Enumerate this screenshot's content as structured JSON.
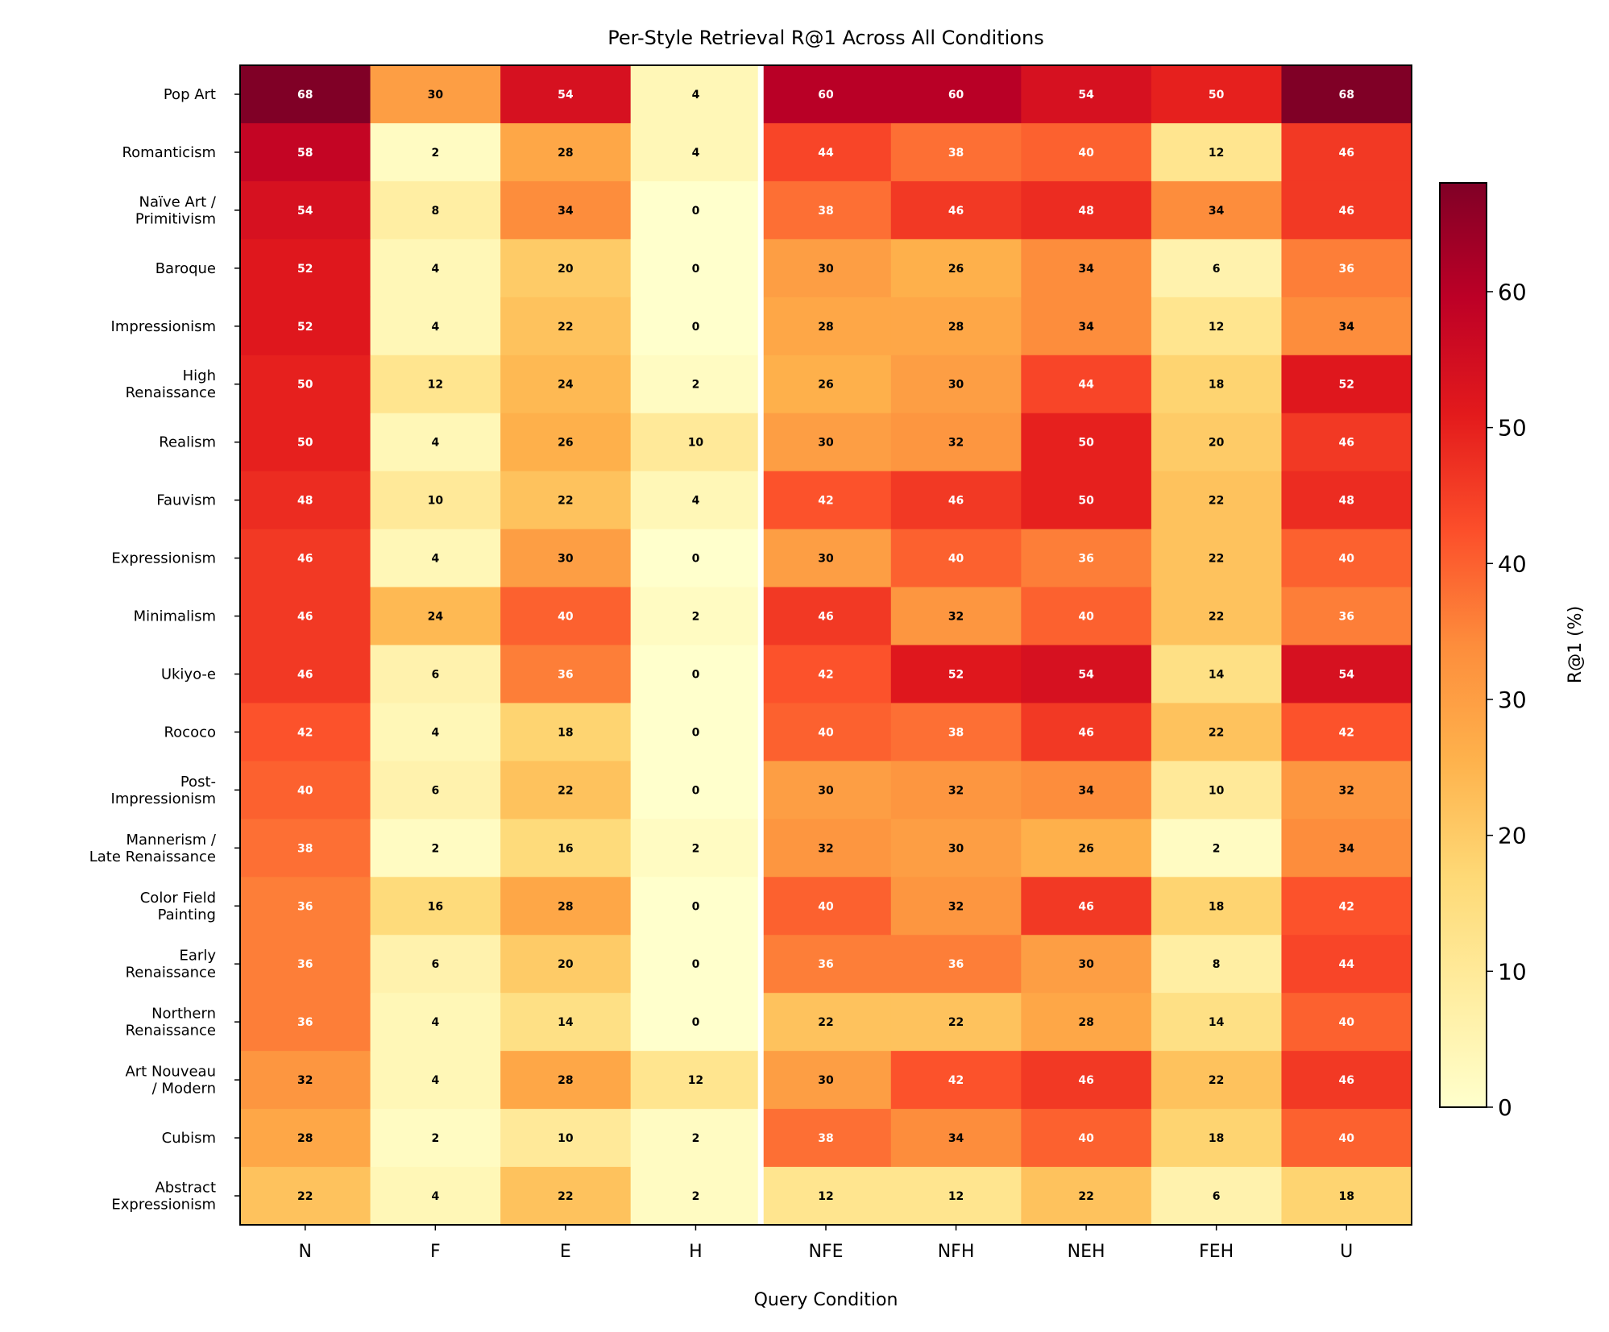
{
  "chart_data": {
    "type": "heatmap",
    "title": "Per-Style Retrieval R@1 Across All Conditions",
    "xlabel": "Query Condition",
    "ylabel": "",
    "colorbar_label": "R@1 (%)",
    "colormap": "YlOrRd",
    "color_range": [
      0,
      68
    ],
    "colorbar_ticks": [
      "0",
      "10",
      "20",
      "30",
      "40",
      "50",
      "60"
    ],
    "separator_after_column": "H",
    "columns": [
      "N",
      "F",
      "E",
      "H",
      "NFE",
      "NFH",
      "NEH",
      "FEH",
      "U"
    ],
    "rows": [
      {
        "label": [
          "Pop Art"
        ],
        "values": [
          68,
          30,
          54,
          4,
          60,
          60,
          54,
          50,
          68
        ]
      },
      {
        "label": [
          "Romanticism"
        ],
        "values": [
          58,
          2,
          28,
          4,
          44,
          38,
          40,
          12,
          46
        ]
      },
      {
        "label": [
          "Naïve Art /",
          "Primitivism"
        ],
        "values": [
          54,
          8,
          34,
          0,
          38,
          46,
          48,
          34,
          46
        ]
      },
      {
        "label": [
          "Baroque"
        ],
        "values": [
          52,
          4,
          20,
          0,
          30,
          26,
          34,
          6,
          36
        ]
      },
      {
        "label": [
          "Impressionism"
        ],
        "values": [
          52,
          4,
          22,
          0,
          28,
          28,
          34,
          12,
          34
        ]
      },
      {
        "label": [
          "High",
          "Renaissance"
        ],
        "values": [
          50,
          12,
          24,
          2,
          26,
          30,
          44,
          18,
          52
        ]
      },
      {
        "label": [
          "Realism"
        ],
        "values": [
          50,
          4,
          26,
          10,
          30,
          32,
          50,
          20,
          46
        ]
      },
      {
        "label": [
          "Fauvism"
        ],
        "values": [
          48,
          10,
          22,
          4,
          42,
          46,
          50,
          22,
          48
        ]
      },
      {
        "label": [
          "Expressionism"
        ],
        "values": [
          46,
          4,
          30,
          0,
          30,
          40,
          36,
          22,
          40
        ]
      },
      {
        "label": [
          "Minimalism"
        ],
        "values": [
          46,
          24,
          40,
          2,
          46,
          32,
          40,
          22,
          36
        ]
      },
      {
        "label": [
          "Ukiyo-e"
        ],
        "values": [
          46,
          6,
          36,
          0,
          42,
          52,
          54,
          14,
          54
        ]
      },
      {
        "label": [
          "Rococo"
        ],
        "values": [
          42,
          4,
          18,
          0,
          40,
          38,
          46,
          22,
          42
        ]
      },
      {
        "label": [
          "Post-",
          "Impressionism"
        ],
        "values": [
          40,
          6,
          22,
          0,
          30,
          32,
          34,
          10,
          32
        ]
      },
      {
        "label": [
          "Mannerism /",
          "Late Renaissance"
        ],
        "values": [
          38,
          2,
          16,
          2,
          32,
          30,
          26,
          2,
          34
        ]
      },
      {
        "label": [
          "Color Field",
          "Painting"
        ],
        "values": [
          36,
          16,
          28,
          0,
          40,
          32,
          46,
          18,
          42
        ]
      },
      {
        "label": [
          "Early",
          "Renaissance"
        ],
        "values": [
          36,
          6,
          20,
          0,
          36,
          36,
          30,
          8,
          44
        ]
      },
      {
        "label": [
          "Northern",
          "Renaissance"
        ],
        "values": [
          36,
          4,
          14,
          0,
          22,
          22,
          28,
          14,
          40
        ]
      },
      {
        "label": [
          "Art Nouveau",
          "/ Modern"
        ],
        "values": [
          32,
          4,
          28,
          12,
          30,
          42,
          46,
          22,
          46
        ]
      },
      {
        "label": [
          "Cubism"
        ],
        "values": [
          28,
          2,
          10,
          2,
          38,
          34,
          40,
          18,
          40
        ]
      },
      {
        "label": [
          "Abstract",
          "Expressionism"
        ],
        "values": [
          22,
          4,
          22,
          2,
          12,
          12,
          22,
          6,
          18
        ]
      }
    ]
  }
}
